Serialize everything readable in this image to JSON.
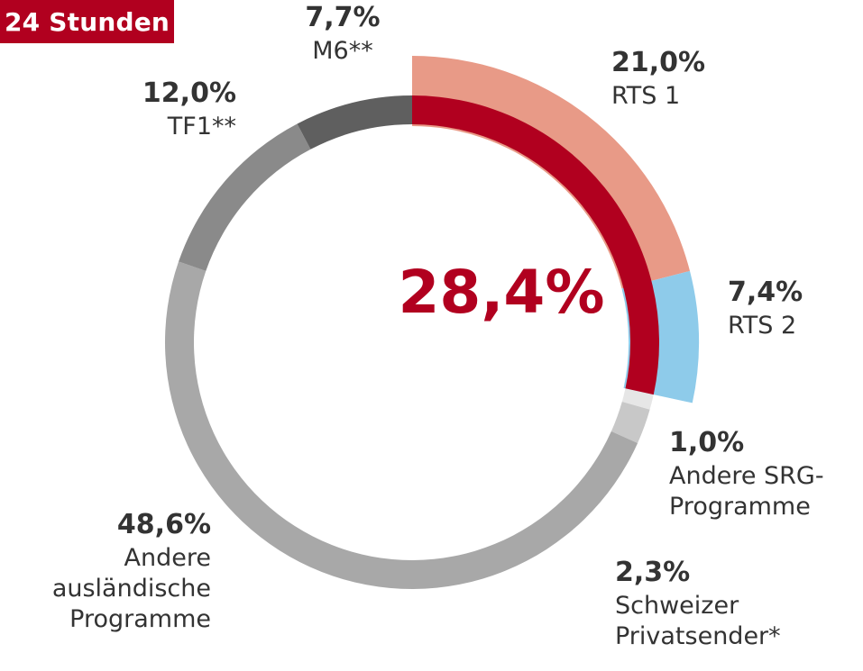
{
  "badge": {
    "text": "24 Stunden",
    "color": "#b1001f"
  },
  "center_label": {
    "text": "28,4%",
    "color": "#b1001f"
  },
  "chart_data": {
    "type": "pie",
    "style": "donut",
    "unit": "%",
    "slices": [
      {
        "label": "RTS 1",
        "value": 21.0,
        "value_label": "21,0%",
        "color": "#e89a87"
      },
      {
        "label": "RTS 2",
        "value": 7.4,
        "value_label": "7,4%",
        "color": "#8ecbea"
      },
      {
        "label": "Andere SRG-\nProgramme",
        "value": 1.0,
        "value_label": "1,0%",
        "color": "#e6e6e6"
      },
      {
        "label": "Schweizer\nPrivatsender*",
        "value": 2.3,
        "value_label": "2,3%",
        "color": "#c8c8c8"
      },
      {
        "label": "Andere\nausländische\nProgramme",
        "value": 48.6,
        "value_label": "48,6%",
        "color": "#a8a8a8"
      },
      {
        "label": "TF1**",
        "value": 12.0,
        "value_label": "12,0%",
        "color": "#8a8a8a"
      },
      {
        "label": "M6**",
        "value": 7.7,
        "value_label": "7,7%",
        "color": "#5f5f5f"
      }
    ],
    "highlight_arc": {
      "value": 28.4,
      "color": "#b1001f",
      "description_of": "SRG total share"
    }
  }
}
